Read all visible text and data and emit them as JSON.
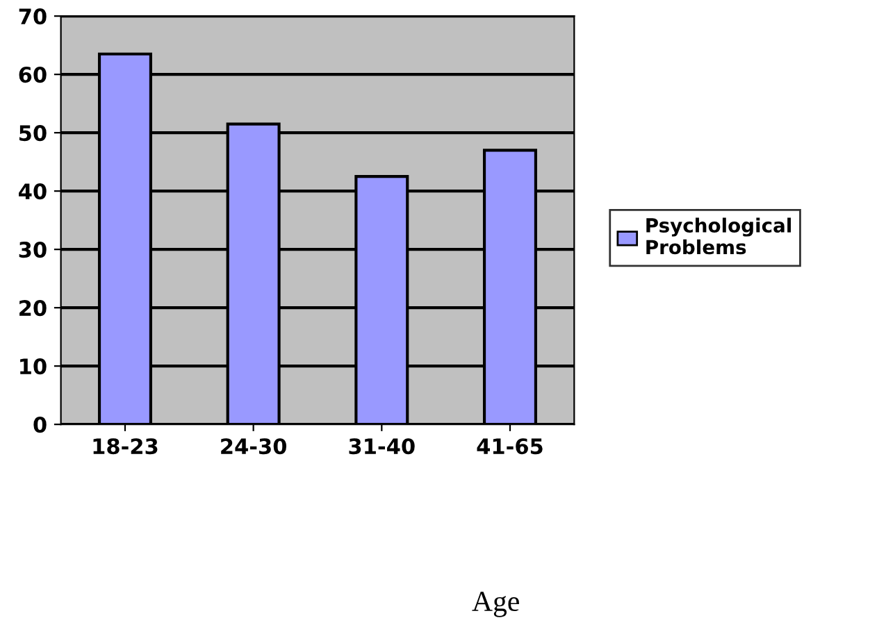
{
  "chart_data": {
    "type": "bar",
    "xlabel": "Age",
    "categories": [
      "18-23",
      "24-30",
      "31-40",
      "41-65"
    ],
    "series": [
      {
        "name": "Psychological Problems",
        "color": "#9999ff",
        "values": [
          63.5,
          51.5,
          42.5,
          47
        ]
      }
    ],
    "ylim": [
      0,
      70
    ],
    "yticks": [
      0,
      10,
      20,
      30,
      40,
      50,
      60,
      70
    ],
    "grid": "y",
    "legend": "right"
  }
}
